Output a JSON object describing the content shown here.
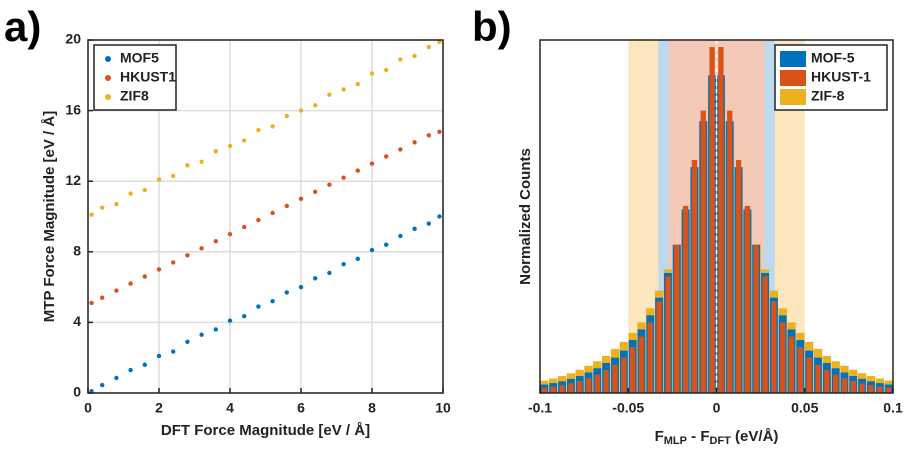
{
  "chart_data": [
    {
      "type": "scatter",
      "panel_label": "a)",
      "xlabel": "DFT Force Magnitude [eV / Å]",
      "ylabel": "MTP Force Magnitude [eV / Å]",
      "xlim": [
        0,
        10
      ],
      "ylim": [
        0,
        20
      ],
      "xticks": [
        0,
        2,
        4,
        6,
        8,
        10
      ],
      "yticks": [
        0,
        4,
        8,
        12,
        16,
        20
      ],
      "grid": true,
      "legend": "upper-left",
      "x": [
        0.1,
        0.4,
        0.8,
        1.2,
        1.6,
        2.0,
        2.4,
        2.8,
        3.2,
        3.6,
        4.0,
        4.4,
        4.8,
        5.2,
        5.6,
        6.0,
        6.4,
        6.8,
        7.2,
        7.6,
        8.0,
        8.4,
        8.8,
        9.2,
        9.6,
        9.9
      ],
      "series": [
        {
          "name": "MOF5",
          "color": "#0072bd",
          "values": [
            0.1,
            0.45,
            0.85,
            1.3,
            1.6,
            2.1,
            2.35,
            2.9,
            3.3,
            3.6,
            4.1,
            4.35,
            4.9,
            5.2,
            5.7,
            6.0,
            6.5,
            6.8,
            7.3,
            7.6,
            8.1,
            8.4,
            8.9,
            9.3,
            9.6,
            10.0
          ]
        },
        {
          "name": "HKUST1",
          "color": "#d95319",
          "values": [
            5.1,
            5.4,
            5.8,
            6.2,
            6.6,
            7.0,
            7.4,
            7.8,
            8.2,
            8.6,
            9.0,
            9.4,
            9.8,
            10.2,
            10.6,
            11.0,
            11.4,
            11.8,
            12.2,
            12.6,
            13.0,
            13.4,
            13.8,
            14.2,
            14.6,
            14.8
          ]
        },
        {
          "name": "ZIF8",
          "color": "#edb120",
          "values": [
            10.1,
            10.5,
            10.7,
            11.3,
            11.5,
            12.1,
            12.3,
            12.9,
            13.1,
            13.7,
            14.0,
            14.3,
            14.9,
            15.1,
            15.7,
            16.0,
            16.3,
            16.9,
            17.2,
            17.5,
            18.1,
            18.3,
            18.9,
            19.1,
            19.6,
            19.9
          ]
        }
      ]
    },
    {
      "type": "histogram",
      "panel_label": "b)",
      "xlabel": [
        "F",
        "MLP",
        " - F",
        "DFT",
        " (eV/Å)"
      ],
      "ylabel": "Normalized Counts",
      "xlim": [
        -0.1,
        0.1
      ],
      "ylim": [
        0,
        1
      ],
      "xticks": [
        -0.1,
        -0.05,
        0,
        0.05,
        0.1
      ],
      "legend": "upper-right",
      "bands": [
        {
          "lo": -0.05,
          "hi": 0.05,
          "color": "#fbe6bd"
        },
        {
          "lo": -0.033,
          "hi": 0.033,
          "color": "#bcd9ee"
        },
        {
          "lo": -0.027,
          "hi": 0.027,
          "color": "#f5c9b8"
        }
      ],
      "zero_line": 0,
      "bins": [
        -0.1,
        -0.095,
        -0.09,
        -0.085,
        -0.08,
        -0.075,
        -0.07,
        -0.065,
        -0.06,
        -0.055,
        -0.05,
        -0.045,
        -0.04,
        -0.035,
        -0.03,
        -0.025,
        -0.02,
        -0.015,
        -0.01,
        -0.005,
        0,
        0.005,
        0.01,
        0.015,
        0.02,
        0.025,
        0.03,
        0.035,
        0.04,
        0.045,
        0.05,
        0.055,
        0.06,
        0.065,
        0.07,
        0.075,
        0.08,
        0.085,
        0.09,
        0.095,
        0.1
      ],
      "series": [
        {
          "name": "MOF-5",
          "color": "#0072bd",
          "values": [
            0.024,
            0.028,
            0.033,
            0.04,
            0.048,
            0.058,
            0.07,
            0.085,
            0.1,
            0.12,
            0.15,
            0.18,
            0.22,
            0.27,
            0.34,
            0.42,
            0.52,
            0.64,
            0.77,
            0.9,
            0.9,
            0.77,
            0.64,
            0.52,
            0.42,
            0.34,
            0.27,
            0.22,
            0.18,
            0.15,
            0.12,
            0.1,
            0.085,
            0.07,
            0.058,
            0.048,
            0.04,
            0.033,
            0.028,
            0.024
          ]
        },
        {
          "name": "HKUST-1",
          "color": "#d95319",
          "values": [
            0.015,
            0.018,
            0.022,
            0.027,
            0.034,
            0.042,
            0.052,
            0.065,
            0.08,
            0.1,
            0.13,
            0.16,
            0.2,
            0.26,
            0.33,
            0.42,
            0.53,
            0.66,
            0.8,
            0.98,
            0.98,
            0.8,
            0.66,
            0.53,
            0.42,
            0.33,
            0.26,
            0.2,
            0.16,
            0.13,
            0.1,
            0.08,
            0.065,
            0.052,
            0.042,
            0.034,
            0.027,
            0.022,
            0.018,
            0.015
          ]
        },
        {
          "name": "ZIF-8",
          "color": "#edb120",
          "values": [
            0.035,
            0.041,
            0.048,
            0.056,
            0.066,
            0.077,
            0.09,
            0.105,
            0.125,
            0.145,
            0.17,
            0.2,
            0.24,
            0.29,
            0.35,
            0.42,
            0.51,
            0.62,
            0.73,
            0.85,
            0.85,
            0.73,
            0.62,
            0.51,
            0.42,
            0.35,
            0.29,
            0.24,
            0.2,
            0.17,
            0.145,
            0.125,
            0.105,
            0.09,
            0.077,
            0.066,
            0.056,
            0.048,
            0.041,
            0.035
          ]
        }
      ]
    }
  ]
}
